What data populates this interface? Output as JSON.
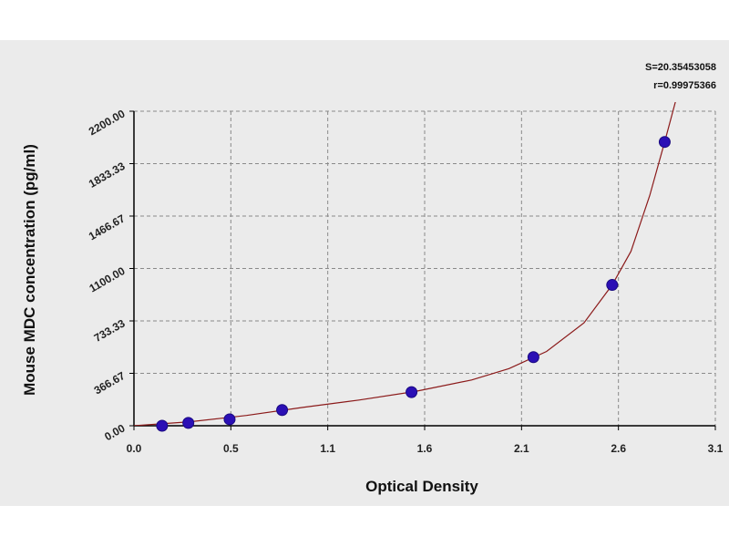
{
  "chart_data": {
    "type": "scatter",
    "xlabel": "Optical Density",
    "ylabel": "Mouse MDC concentration (pg/ml)",
    "xlim": [
      0.0,
      3.1
    ],
    "ylim": [
      0.0,
      2200.0
    ],
    "x_ticks": [
      "0.0",
      "0.5",
      "1.1",
      "1.6",
      "2.1",
      "2.6",
      "3.1"
    ],
    "y_ticks": [
      "0.00",
      "366.67",
      "733.33",
      "1100.00",
      "1466.67",
      "1833.33",
      "2200.00"
    ],
    "grid": true,
    "series": [
      {
        "points": [
          {
            "x": 0.15,
            "y": 0
          },
          {
            "x": 0.29,
            "y": 20
          },
          {
            "x": 0.51,
            "y": 45
          },
          {
            "x": 0.79,
            "y": 110
          },
          {
            "x": 1.48,
            "y": 235
          },
          {
            "x": 2.13,
            "y": 480
          },
          {
            "x": 2.55,
            "y": 985
          },
          {
            "x": 2.83,
            "y": 1985
          }
        ],
        "marker_color": "#2b0fb5"
      }
    ],
    "fit_curve": {
      "color": "#8b1a1a",
      "points": [
        {
          "x": 0.0,
          "y": 0
        },
        {
          "x": 0.3,
          "y": 28
        },
        {
          "x": 0.6,
          "y": 72
        },
        {
          "x": 0.9,
          "y": 128
        },
        {
          "x": 1.2,
          "y": 180
        },
        {
          "x": 1.5,
          "y": 240
        },
        {
          "x": 1.8,
          "y": 320
        },
        {
          "x": 2.0,
          "y": 400
        },
        {
          "x": 2.2,
          "y": 520
        },
        {
          "x": 2.4,
          "y": 720
        },
        {
          "x": 2.55,
          "y": 985
        },
        {
          "x": 2.65,
          "y": 1220
        },
        {
          "x": 2.75,
          "y": 1610
        },
        {
          "x": 2.83,
          "y": 1985
        },
        {
          "x": 2.89,
          "y": 2280
        }
      ]
    },
    "annotations": {
      "s": "S=20.35453058",
      "r": "r=0.99975366"
    }
  }
}
